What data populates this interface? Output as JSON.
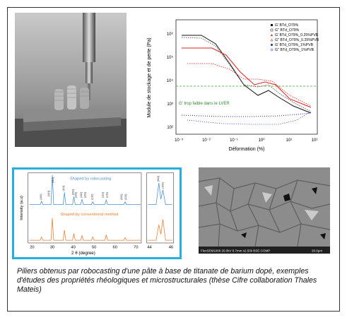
{
  "caption": "Piliers obtenus par robocasting d'une pâte à base de titanate de barium dopé, exemples d'études des propriétés rhéologiques et microstructurales (thèse Cifre collaboration Thales Mateis)",
  "rheology": {
    "ylabel": "Module de stockage et de perte (Pa)",
    "xlabel": "Déformation (%)",
    "annotation": "G' trop faible dans le LVER",
    "y_ticks": [
      "10⁶",
      "10⁵",
      "10⁴",
      "10³",
      "10²"
    ],
    "x_ticks": [
      "10⁻³",
      "10⁻²",
      "10⁻¹",
      "10⁰",
      "10¹",
      "10²"
    ],
    "legend": [
      "G' BTd_O79%",
      "G'' BTd_O79%",
      "G' BTd_O79%_0.25%PVB",
      "G'' BTd_O79%_0.25%PVB",
      "G' BTd_O79%_1%PVB",
      "G'' BTd_O79%_1%PVB"
    ],
    "colors": {
      "black": "#111111",
      "red": "#e0201c",
      "blue": "#1a2ad8",
      "green_line": "#3aa63a"
    }
  },
  "xrd": {
    "label_robo": "Shaped by robocasting",
    "label_conv": "Shaped by conventional method",
    "ylabel": "Intensity (a.u)",
    "xlabel": "2 θ (degree)",
    "x_ticks": [
      "20",
      "30",
      "40",
      "50",
      "60",
      "70"
    ],
    "inset_ticks": [
      "44",
      "46"
    ],
    "peaks": [
      "(100)",
      "(101)",
      "(110)",
      "(111)",
      "(002)",
      "(200)",
      "(102)",
      "(201)",
      "(210)",
      "(112)",
      "(211)",
      "(202)",
      "(220)"
    ],
    "inset_peaks": [
      "(002)",
      "(200)"
    ],
    "colors": {
      "blue": "#4a90d9",
      "orange": "#f07a2a",
      "border": "#27aee0"
    }
  },
  "sem": {
    "footer": "FlexSEM1000 20.0kV 8.7mm x2.50k BSE-COMP",
    "scale": "20.0μm"
  }
}
